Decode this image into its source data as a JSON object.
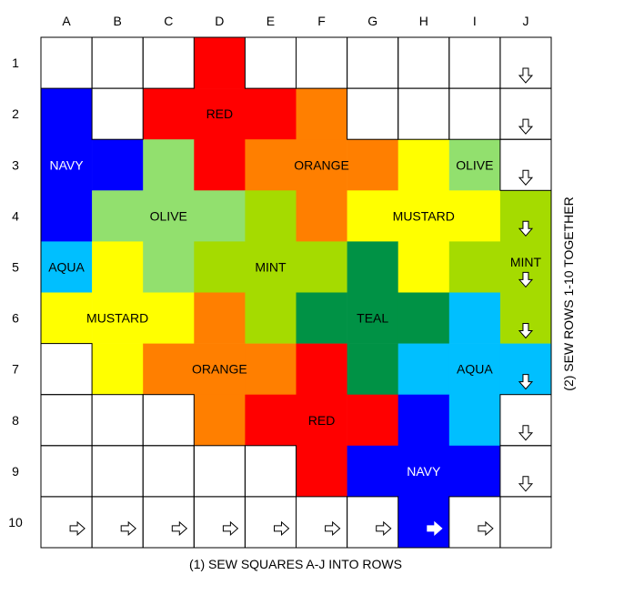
{
  "columns": [
    "A",
    "B",
    "C",
    "D",
    "E",
    "F",
    "G",
    "H",
    "I",
    "J"
  ],
  "rows": [
    "1",
    "2",
    "3",
    "4",
    "5",
    "6",
    "7",
    "8",
    "9",
    "10"
  ],
  "colors": {
    "W": "#ffffff",
    "RED": "#ff0000",
    "NAVY": "#0000ff",
    "ORANGE": "#ff7f00",
    "OLIVE": "#92e06e",
    "MUSTARD": "#ffff00",
    "AQUA": "#00bfff",
    "MINT": "#a5db00",
    "TEAL": "#009245"
  },
  "grid": [
    [
      "W",
      "W",
      "W",
      "RED",
      "W",
      "W",
      "W",
      "W",
      "W",
      "W"
    ],
    [
      "NAVY",
      "W",
      "RED",
      "RED",
      "RED",
      "ORANGE",
      "W",
      "W",
      "W",
      "W"
    ],
    [
      "NAVY",
      "NAVY",
      "OLIVE",
      "RED",
      "ORANGE",
      "ORANGE",
      "ORANGE",
      "MUSTARD",
      "OLIVE",
      "W"
    ],
    [
      "NAVY",
      "OLIVE",
      "OLIVE",
      "OLIVE",
      "MINT",
      "ORANGE",
      "MUSTARD",
      "MUSTARD",
      "MUSTARD",
      "MINT"
    ],
    [
      "AQUA",
      "MUSTARD",
      "OLIVE",
      "MINT",
      "MINT",
      "MINT",
      "TEAL",
      "MUSTARD",
      "MINT",
      "MINT"
    ],
    [
      "MUSTARD",
      "MUSTARD",
      "MUSTARD",
      "ORANGE",
      "MINT",
      "TEAL",
      "TEAL",
      "TEAL",
      "AQUA",
      "MINT"
    ],
    [
      "W",
      "MUSTARD",
      "ORANGE",
      "ORANGE",
      "ORANGE",
      "RED",
      "TEAL",
      "AQUA",
      "AQUA",
      "AQUA"
    ],
    [
      "W",
      "W",
      "W",
      "ORANGE",
      "RED",
      "RED",
      "RED",
      "NAVY",
      "AQUA",
      "W"
    ],
    [
      "W",
      "W",
      "W",
      "W",
      "W",
      "RED",
      "NAVY",
      "NAVY",
      "NAVY",
      "W"
    ],
    [
      "W",
      "W",
      "W",
      "W",
      "W",
      "W",
      "W",
      "NAVY",
      "W",
      "W"
    ]
  ],
  "labels": [
    {
      "text": "RED",
      "row": 1,
      "col": 3.5,
      "color": "dark"
    },
    {
      "text": "NAVY",
      "row": 2,
      "col": 0.5,
      "color": "light"
    },
    {
      "text": "ORANGE",
      "row": 2,
      "col": 5.5,
      "color": "dark"
    },
    {
      "text": "OLIVE",
      "row": 2,
      "col": 8.5,
      "color": "dark"
    },
    {
      "text": "OLIVE",
      "row": 3,
      "col": 2.5,
      "color": "dark"
    },
    {
      "text": "MUSTARD",
      "row": 3,
      "col": 7.5,
      "color": "dark"
    },
    {
      "text": "AQUA",
      "row": 4,
      "col": 0.5,
      "color": "dark"
    },
    {
      "text": "MINT",
      "row": 4,
      "col": 4.5,
      "color": "dark"
    },
    {
      "text": "MINT",
      "row": 3.9,
      "col": 9.5,
      "color": "dark"
    },
    {
      "text": "MUSTARD",
      "row": 5,
      "col": 1.5,
      "color": "dark"
    },
    {
      "text": "TEAL",
      "row": 5,
      "col": 6.5,
      "color": "dark"
    },
    {
      "text": "ORANGE",
      "row": 6,
      "col": 3.5,
      "color": "dark"
    },
    {
      "text": "AQUA",
      "row": 6,
      "col": 8.5,
      "color": "dark"
    },
    {
      "text": "RED",
      "row": 7,
      "col": 5.5,
      "color": "dark"
    },
    {
      "text": "NAVY",
      "row": 8,
      "col": 7.5,
      "color": "light"
    }
  ],
  "arrows_down_rows": [
    1,
    2,
    3,
    4,
    5,
    6,
    7,
    8,
    9
  ],
  "arrows_right_cols": [
    1,
    2,
    3,
    4,
    5,
    6,
    7,
    8,
    9
  ],
  "captions": {
    "bottom": "(1) SEW SQUARES A-J INTO ROWS",
    "right": "(2) SEW ROWS 1-10 TOGETHER"
  }
}
